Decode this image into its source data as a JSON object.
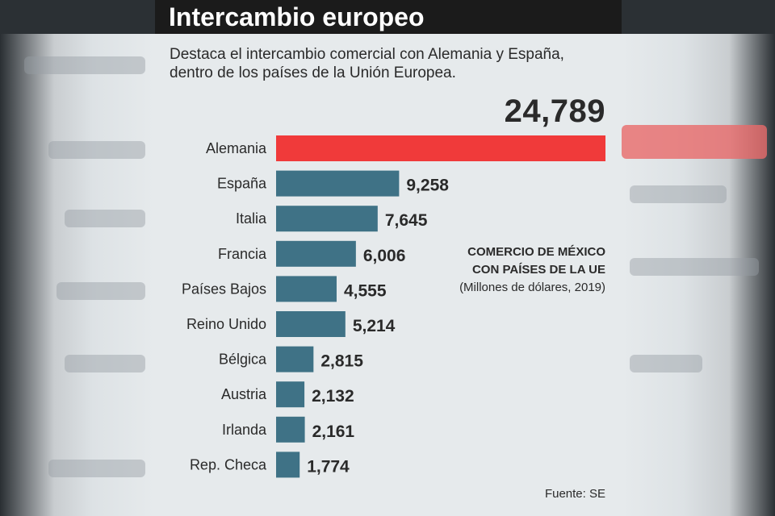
{
  "chart_data": {
    "type": "bar",
    "orientation": "horizontal",
    "title": "Intercambio europeo",
    "subtitle": "Destaca el intercambio comercial con Alemania y España, dentro de los países de la Unión Europea.",
    "series_title_lines": [
      "COMERCIO DE MÉXICO",
      "CON PAÍSES DE LA UE"
    ],
    "unit_note": "(Millones de dólares, 2019)",
    "source": "Fuente: SE",
    "categories": [
      "Alemania",
      "España",
      "Italia",
      "Francia",
      "Países Bajos",
      "Reino Unido",
      "Bélgica",
      "Austria",
      "Irlanda",
      "Rep. Checa"
    ],
    "values": [
      24789,
      9258,
      7645,
      6006,
      4555,
      5214,
      2815,
      2132,
      2161,
      1774
    ],
    "value_labels": [
      "24,789",
      "9,258",
      "7,645",
      "6,006",
      "4,555",
      "5,214",
      "2,815",
      "2,132",
      "2,161",
      "1,774"
    ],
    "highlight_index": 0,
    "xlim": [
      0,
      24789
    ],
    "grid": false,
    "colors": {
      "highlight": "#f03a3a",
      "bar": "#3f7286",
      "text": "#2a2a2a",
      "background": "#e6eaec",
      "title_bar": "#1b1b1b"
    }
  }
}
